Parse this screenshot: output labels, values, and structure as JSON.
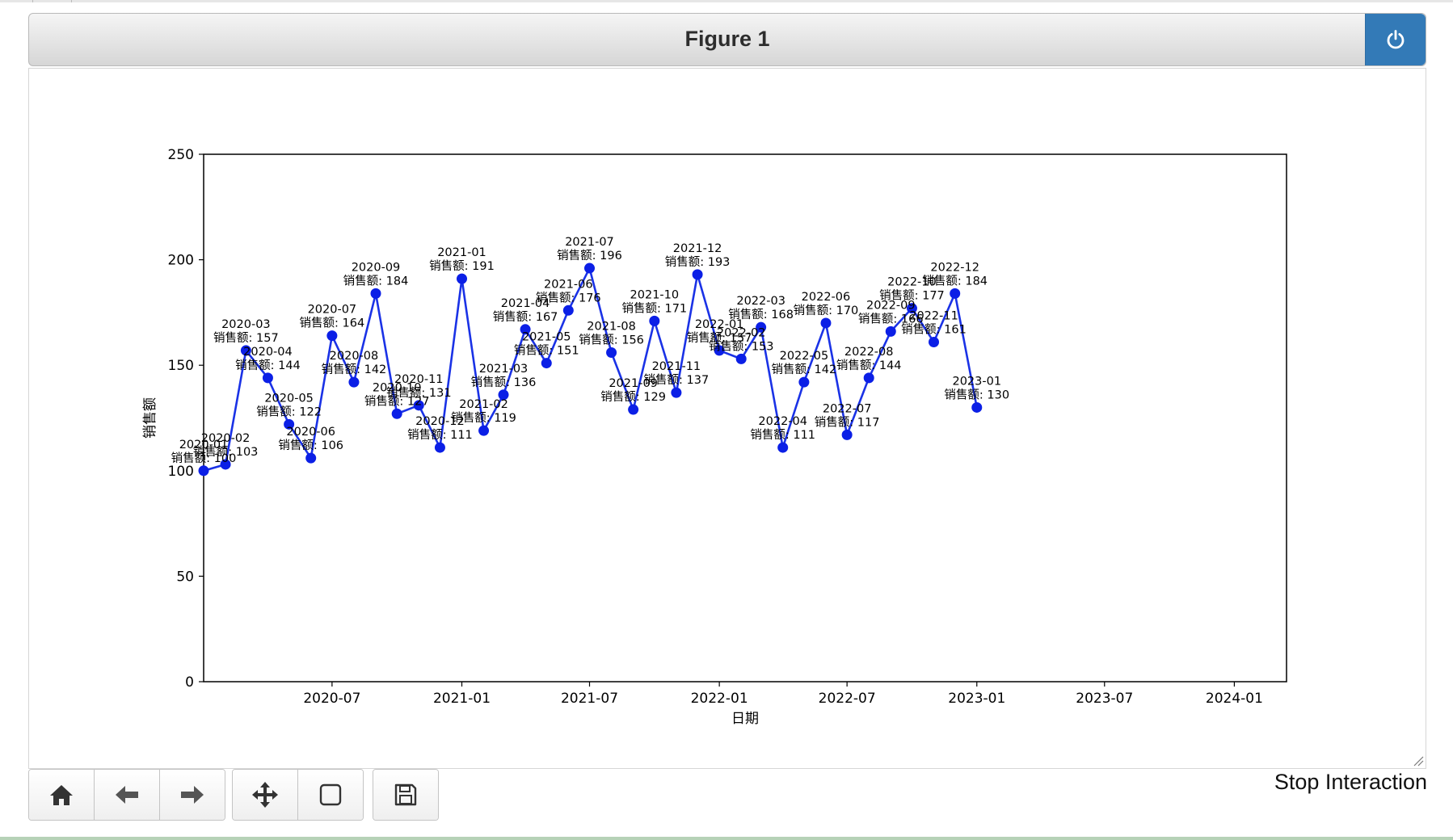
{
  "window": {
    "title": "Figure 1",
    "power_icon": "power-icon"
  },
  "toolbar": {
    "buttons": [
      {
        "name": "home-button",
        "icon": "home-icon"
      },
      {
        "name": "back-button",
        "icon": "arrow-left-icon"
      },
      {
        "name": "forward-button",
        "icon": "arrow-right-icon"
      },
      {
        "name": "pan-button",
        "icon": "move-icon"
      },
      {
        "name": "zoom-button",
        "icon": "square-icon"
      },
      {
        "name": "save-button",
        "icon": "floppy-disk-icon"
      }
    ],
    "stop_label": "Stop Interaction"
  },
  "colors": {
    "line": "#1a32e6",
    "marker": "#0b1fe6",
    "power_button": "#337ab7"
  },
  "chart_data": {
    "type": "line",
    "title": "",
    "xlabel": "日期",
    "ylabel": "销售额",
    "ylim": [
      0,
      250
    ],
    "yticks": [
      0,
      50,
      100,
      150,
      200,
      250
    ],
    "xlim": [
      "2020-01-01",
      "2024-03-15"
    ],
    "xticks": [
      "2020-07",
      "2021-01",
      "2021-07",
      "2022-01",
      "2022-07",
      "2023-01",
      "2023-07",
      "2024-01"
    ],
    "grid": false,
    "annotation_prefix": "销售额: ",
    "series": [
      {
        "x": [
          "2020-01",
          "2020-02",
          "2020-03",
          "2020-04",
          "2020-05",
          "2020-06",
          "2020-07",
          "2020-08",
          "2020-09",
          "2020-10",
          "2020-11",
          "2020-12",
          "2021-01",
          "2021-02",
          "2021-03",
          "2021-04",
          "2021-05",
          "2021-06",
          "2021-07",
          "2021-08",
          "2021-09",
          "2021-10",
          "2021-11",
          "2021-12",
          "2022-01",
          "2022-02",
          "2022-03",
          "2022-04",
          "2022-05",
          "2022-06",
          "2022-07",
          "2022-08",
          "2022-09",
          "2022-10",
          "2022-11",
          "2022-12",
          "2023-01"
        ],
        "values": [
          100,
          103,
          157,
          144,
          122,
          106,
          164,
          142,
          184,
          127,
          131,
          111,
          191,
          119,
          136,
          167,
          151,
          176,
          196,
          156,
          129,
          171,
          137,
          193,
          157,
          153,
          168,
          111,
          142,
          170,
          117,
          144,
          166,
          177,
          161,
          184,
          130
        ]
      }
    ]
  }
}
